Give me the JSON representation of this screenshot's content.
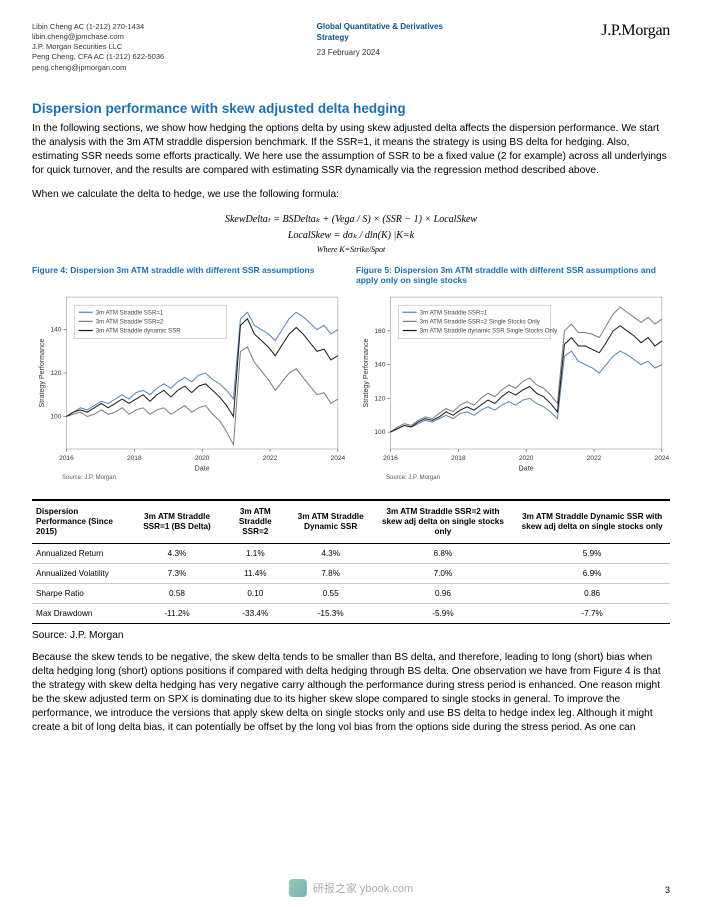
{
  "header": {
    "author1_line1": "Libin Cheng AC (1-212) 270-1434",
    "author1_line2": "libin.cheng@jpmchase.com",
    "firm": "J.P. Morgan Securities LLC",
    "author2_line1": "Peng Cheng, CFA AC (1-212) 622-5036",
    "author2_line2": "peng.cheng@jpmorgan.com",
    "strategy_l1": "Global Quantitative & Derivatives",
    "strategy_l2": "Strategy",
    "date": "23 February 2024",
    "logo": "J.P.Morgan"
  },
  "section_title": "Dispersion performance with skew adjusted delta hedging",
  "para1": "In the following sections, we show how hedging the options delta by using skew adjusted delta affects the dispersion performance. We start the analysis with the 3m ATM straddle dispersion benchmark. If the SSR=1, it means the strategy is using BS delta for hedging. Also, estimating SSR needs some efforts practically. We here use the assumption of SSR to be a fixed value (2 for example) across all underlyings for quick turnover, and the results are compared with estimating SSR dynamically via the regression method described above.",
  "para2": "When we calculate the delta to hedge, we use the following formula:",
  "formula": {
    "l1": "SkewDeltaₜ = BSDeltaₖ + (Vega / S) × (SSR − 1) × LocalSkew",
    "l2": "LocalSkew = dσₖ / dln(K) |K=k",
    "l3": "Where K=Strike/Spot"
  },
  "fig4": {
    "title": "Figure 4: Dispersion 3m ATM straddle with different SSR assumptions",
    "ylabel": "Strategy Performance",
    "xlabel": "Date",
    "source": "Source: J.P. Morgan",
    "xticks": [
      "2016",
      "2018",
      "2020",
      "2022",
      "2024"
    ],
    "yticks": [
      100,
      120,
      140
    ],
    "ylim": [
      85,
      155
    ],
    "legend": [
      "3m ATM Straddle SSR=1",
      "3m ATM Straddle SSR=2",
      "3m ATM Straddle dynamic SSR"
    ],
    "colors": [
      "#5a86b5",
      "#7d7d7d",
      "#1a1a1a"
    ],
    "bg": "#ffffff",
    "series1": [
      100,
      102,
      104,
      103,
      105,
      107,
      106,
      108,
      110,
      108,
      111,
      112,
      110,
      113,
      115,
      113,
      116,
      118,
      116,
      119,
      120,
      117,
      115,
      112,
      108,
      145,
      148,
      142,
      140,
      138,
      135,
      140,
      145,
      148,
      146,
      143,
      140,
      142,
      138,
      140
    ],
    "series2": [
      100,
      101,
      102,
      100,
      101,
      103,
      101,
      102,
      104,
      101,
      103,
      104,
      101,
      103,
      104,
      101,
      103,
      105,
      102,
      104,
      105,
      101,
      98,
      93,
      87,
      130,
      132,
      125,
      121,
      117,
      112,
      116,
      120,
      122,
      118,
      114,
      110,
      111,
      106,
      108
    ],
    "series3": [
      100,
      102,
      103,
      102,
      104,
      106,
      104,
      106,
      108,
      106,
      108,
      110,
      107,
      110,
      112,
      109,
      112,
      114,
      111,
      114,
      115,
      112,
      109,
      105,
      100,
      142,
      145,
      138,
      135,
      132,
      128,
      133,
      138,
      141,
      138,
      134,
      130,
      131,
      126,
      128
    ]
  },
  "fig5": {
    "title": "Figure 5: Dispersion 3m ATM straddle with different SSR assumptions and apply only on single stocks",
    "ylabel": "Strategy Performance",
    "xlabel": "Date",
    "source": "Source: J.P. Morgan",
    "xticks": [
      "2016",
      "2018",
      "2020",
      "2022",
      "2024"
    ],
    "yticks": [
      100,
      120,
      140,
      160
    ],
    "ylim": [
      90,
      180
    ],
    "legend": [
      "3m ATM Straddle SSR=1",
      "3m ATM Straddle SSR=2 Single Stocks Only",
      "3m ATM Straddle dynamic SSR Single Stocks Only"
    ],
    "colors": [
      "#5a86b5",
      "#7d7d7d",
      "#1a1a1a"
    ],
    "bg": "#ffffff",
    "series1": [
      100,
      102,
      104,
      103,
      105,
      107,
      106,
      108,
      110,
      108,
      111,
      112,
      110,
      113,
      115,
      113,
      116,
      118,
      116,
      119,
      120,
      117,
      115,
      112,
      108,
      145,
      148,
      142,
      140,
      138,
      135,
      140,
      145,
      148,
      146,
      143,
      140,
      142,
      138,
      140
    ],
    "series2": [
      100,
      103,
      105,
      104,
      107,
      109,
      108,
      111,
      114,
      112,
      116,
      118,
      116,
      120,
      123,
      121,
      125,
      128,
      126,
      130,
      132,
      128,
      126,
      122,
      117,
      160,
      164,
      159,
      159,
      158,
      156,
      163,
      170,
      174,
      171,
      168,
      165,
      168,
      164,
      167
    ],
    "series3": [
      100,
      102,
      104,
      103,
      106,
      108,
      107,
      109,
      112,
      110,
      113,
      115,
      113,
      116,
      119,
      117,
      121,
      124,
      122,
      125,
      127,
      123,
      121,
      117,
      112,
      152,
      156,
      151,
      151,
      149,
      147,
      153,
      160,
      163,
      160,
      157,
      153,
      156,
      151,
      154
    ]
  },
  "table": {
    "headers": [
      "Dispersion Performance (Since 2015)",
      "3m ATM Straddle SSR=1 (BS Delta)",
      "3m ATM Straddle SSR=2",
      "3m ATM Straddle Dynamic SSR",
      "3m ATM Straddle SSR=2 with skew adj delta on single stocks only",
      "3m ATM Straddle Dynamic SSR with skew adj delta on single stocks only"
    ],
    "rows": [
      [
        "Annualized Return",
        "4.3%",
        "1.1%",
        "4.3%",
        "6.8%",
        "5.9%"
      ],
      [
        "Annualized Volatility",
        "7.3%",
        "11.4%",
        "7.8%",
        "7.0%",
        "6.9%"
      ],
      [
        "Sharpe Ratio",
        "0.58",
        "0.10",
        "0.55",
        "0.96",
        "0.86"
      ],
      [
        "Max Drawdown",
        "-11.2%",
        "-33.4%",
        "-15.3%",
        "-5.9%",
        "-7.7%"
      ]
    ]
  },
  "table_source": "Source: J.P. Morgan",
  "para3": "Because the skew tends to be negative, the skew delta tends to be smaller than BS delta, and therefore, leading to long (short) bias when delta hedging long (short) options positions if compared with delta hedging through BS delta. One observation we have from Figure 4 is that the strategy with skew delta hedging has very negative carry although the performance during stress period is enhanced. One reason might be the skew adjusted term on SPX is dominating due to its higher skew slope compared to single stocks in general. To improve the performance, we introduce the versions that apply skew delta on single stocks only and use BS delta to hedge index leg. Although it might create a bit of long delta bias, it can potentially be offset by the long vol bias from the options side during the stress period. As one can",
  "page_num": "3",
  "watermark": "研报之家 ybook.com"
}
